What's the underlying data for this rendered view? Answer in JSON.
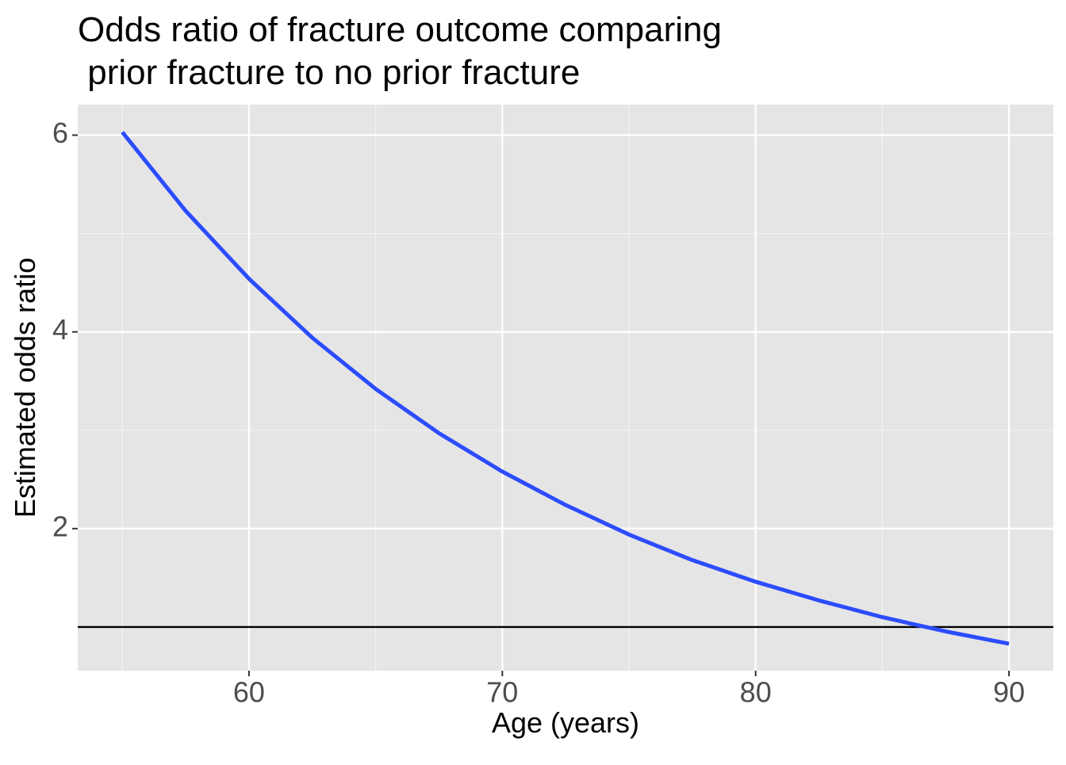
{
  "chart_data": {
    "type": "line",
    "title": [
      "Odds ratio of fracture outcome comparing",
      " prior fracture to no prior fracture"
    ],
    "x_label": "Age (years)",
    "y_label": "Estimated odds ratio",
    "x": [
      55,
      57.5,
      60,
      62.5,
      65,
      67.5,
      70,
      72.5,
      75,
      77.5,
      80,
      82.5,
      85,
      87.5,
      90
    ],
    "series": [
      {
        "color": "#2c4cff",
        "values": [
          6.03,
          5.23,
          4.54,
          3.94,
          3.42,
          2.97,
          2.58,
          2.24,
          1.94,
          1.68,
          1.46,
          1.27,
          1.1,
          0.955,
          0.83
        ]
      }
    ],
    "hline": 1,
    "xlim": [
      53.24,
      91.75
    ],
    "ylim": [
      0.556,
      6.31
    ],
    "xticks": [
      60,
      70,
      80,
      90
    ],
    "yticks": [
      2,
      4,
      6
    ],
    "xminor": [
      55,
      65,
      75,
      85
    ],
    "yminor": [
      1,
      3,
      5
    ],
    "grid": true
  }
}
